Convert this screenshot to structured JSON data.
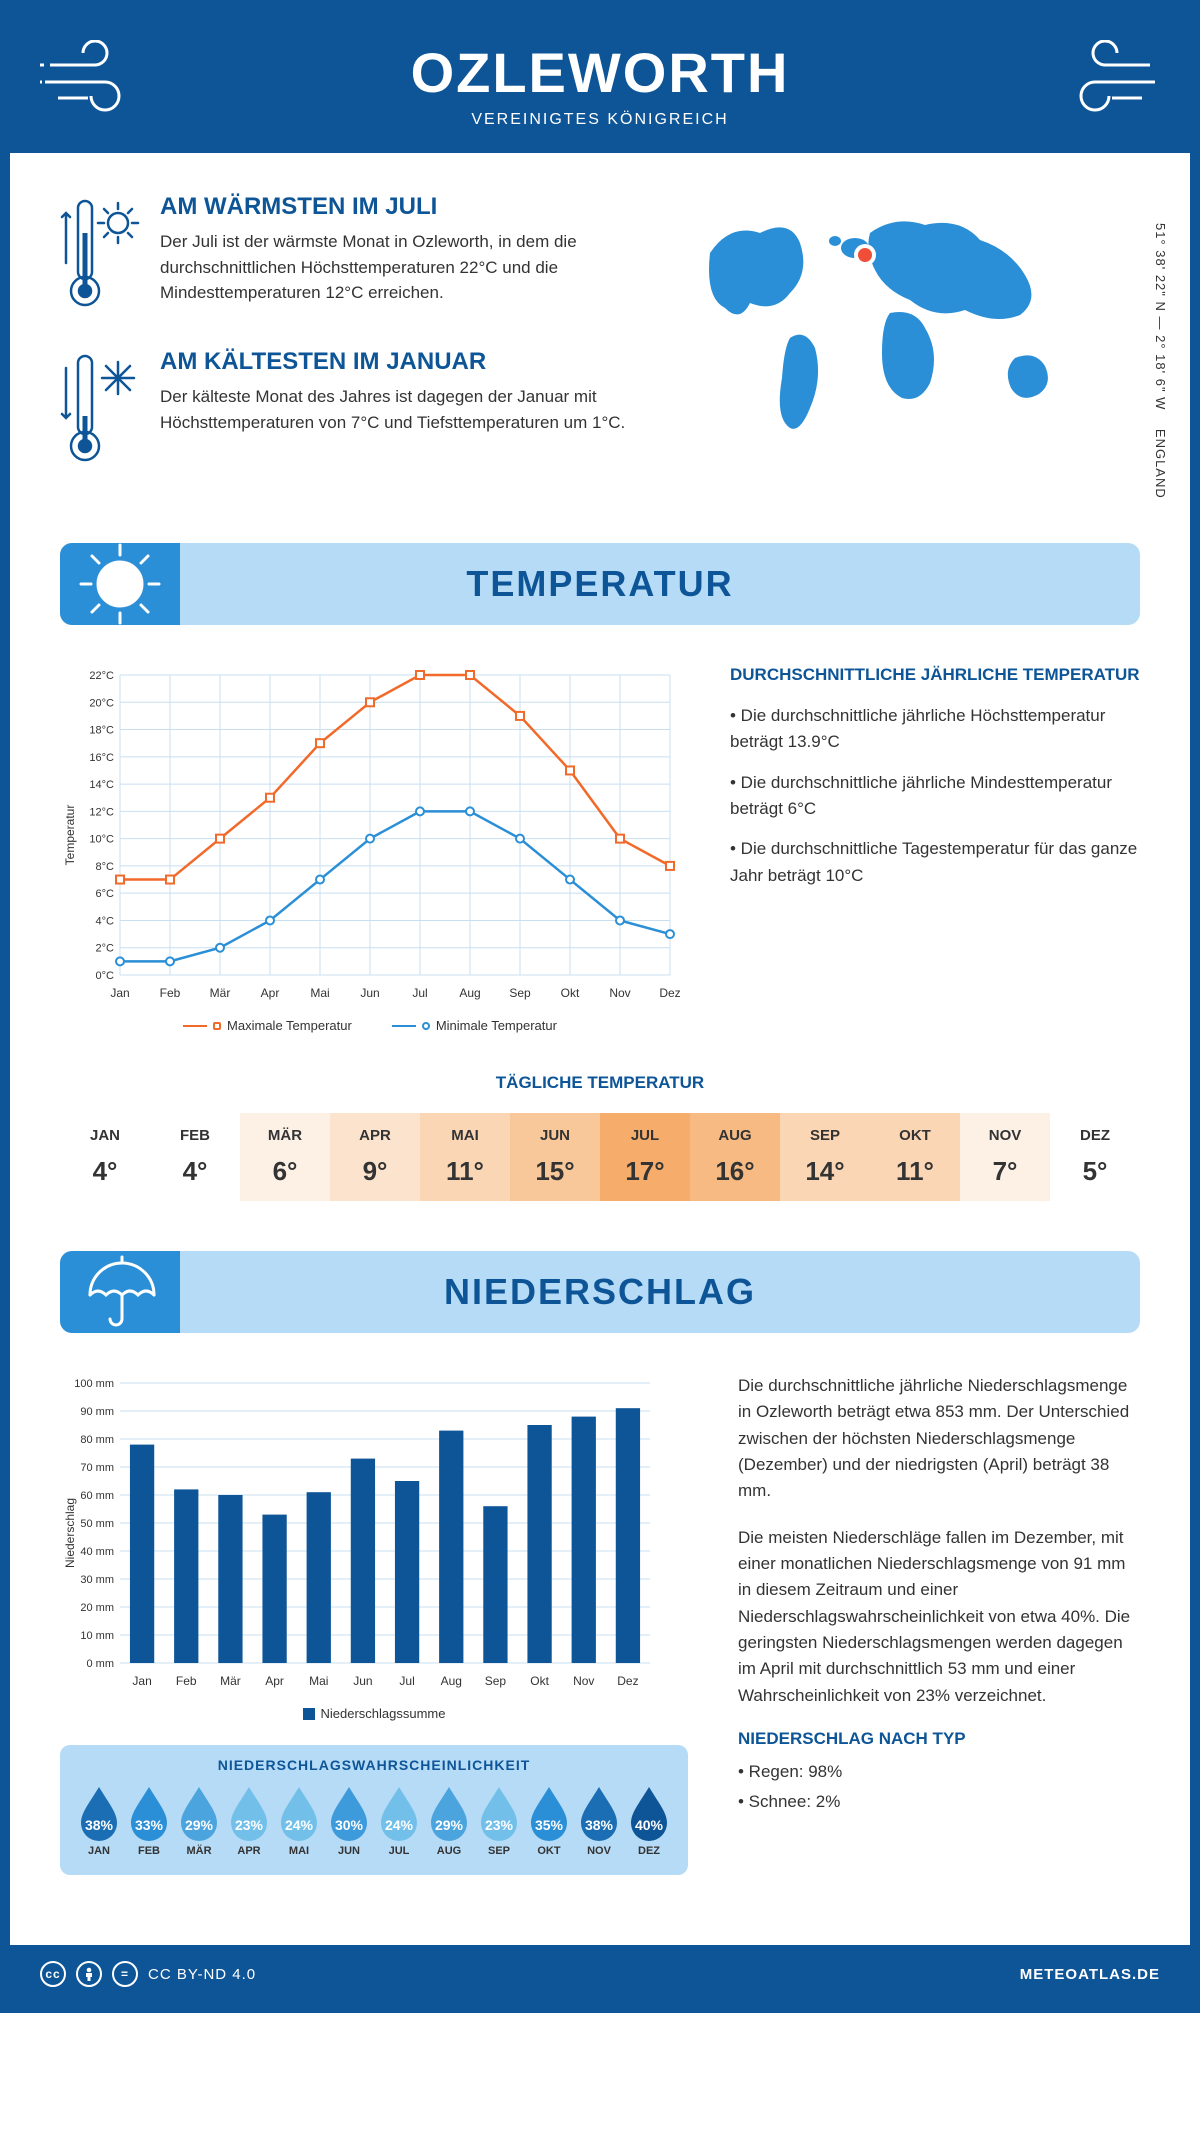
{
  "header": {
    "title": "OZLEWORTH",
    "subtitle": "VEREINIGTES KÖNIGREICH"
  },
  "coords_line1": "51° 38' 22\" N — 2° 18' 6\" W",
  "coords_line2": "ENGLAND",
  "facts": {
    "warm": {
      "title": "AM WÄRMSTEN IM JULI",
      "text": "Der Juli ist der wärmste Monat in Ozleworth, in dem die durchschnittlichen Höchsttemperaturen 22°C und die Mindesttemperaturen 12°C erreichen."
    },
    "cold": {
      "title": "AM KÄLTESTEN IM JANUAR",
      "text": "Der kälteste Monat des Jahres ist dagegen der Januar mit Höchsttemperaturen von 7°C und Tiefsttemperaturen um 1°C."
    }
  },
  "sections": {
    "temperature": "TEMPERATUR",
    "precipitation": "NIEDERSCHLAG"
  },
  "months": [
    "Jan",
    "Feb",
    "Mär",
    "Apr",
    "Mai",
    "Jun",
    "Jul",
    "Aug",
    "Sep",
    "Okt",
    "Nov",
    "Dez"
  ],
  "months_upper": [
    "JAN",
    "FEB",
    "MÄR",
    "APR",
    "MAI",
    "JUN",
    "JUL",
    "AUG",
    "SEP",
    "OKT",
    "NOV",
    "DEZ"
  ],
  "temp_chart": {
    "type": "line",
    "ylabel": "Temperatur",
    "ylim": [
      0,
      22
    ],
    "ytick_step": 2,
    "ytick_suffix": "°C",
    "max_series": [
      7,
      7,
      10,
      13,
      17,
      20,
      22,
      22,
      19,
      15,
      10,
      8
    ],
    "min_series": [
      1,
      1,
      2,
      4,
      7,
      10,
      12,
      12,
      10,
      7,
      4,
      3
    ],
    "max_color": "#f26a2a",
    "min_color": "#2a8fd6",
    "grid_color": "#c9dff0",
    "marker_fill": "#ffffff",
    "legend_max": "Maximale Temperatur",
    "legend_min": "Minimale Temperatur"
  },
  "temp_info": {
    "heading": "DURCHSCHNITTLICHE JÄHRLICHE TEMPERATUR",
    "p1": "• Die durchschnittliche jährliche Höchsttemperatur beträgt 13.9°C",
    "p2": "• Die durchschnittliche jährliche Mindesttemperatur beträgt 6°C",
    "p3": "• Die durchschnittliche Tagestemperatur für das ganze Jahr beträgt 10°C"
  },
  "daily": {
    "title": "TÄGLICHE TEMPERATUR",
    "values": [
      "4°",
      "4°",
      "6°",
      "9°",
      "11°",
      "15°",
      "17°",
      "16°",
      "14°",
      "11°",
      "7°",
      "5°"
    ],
    "bg_colors": [
      "#ffffff",
      "#ffffff",
      "#fdf0e5",
      "#fce3ce",
      "#fbd6b5",
      "#f9c89a",
      "#f6ac6b",
      "#f7ba83",
      "#fbd6b5",
      "#fbd6b5",
      "#fdf0e5",
      "#ffffff"
    ]
  },
  "precip_chart": {
    "type": "bar",
    "ylabel": "Niederschlag",
    "ylim": [
      0,
      100
    ],
    "ytick_step": 10,
    "ytick_suffix": " mm",
    "values": [
      78,
      62,
      60,
      53,
      61,
      73,
      65,
      83,
      56,
      85,
      88,
      91
    ],
    "bar_color": "#0d5597",
    "grid_color": "#c9dff0",
    "legend": "Niederschlagssumme"
  },
  "precip_text": {
    "p1": "Die durchschnittliche jährliche Niederschlagsmenge in Ozleworth beträgt etwa 853 mm. Der Unterschied zwischen der höchsten Niederschlagsmenge (Dezember) und der niedrigsten (April) beträgt 38 mm.",
    "p2": "Die meisten Niederschläge fallen im Dezember, mit einer monatlichen Niederschlagsmenge von 91 mm in diesem Zeitraum und einer Niederschlagswahrscheinlichkeit von etwa 40%. Die geringsten Niederschlagsmengen werden dagegen im April mit durchschnittlich 53 mm und einer Wahrscheinlichkeit von 23% verzeichnet.",
    "type_heading": "NIEDERSCHLAG NACH TYP",
    "type_rain": "• Regen: 98%",
    "type_snow": "• Schnee: 2%"
  },
  "prob": {
    "title": "NIEDERSCHLAGSWAHRSCHEINLICHKEIT",
    "values": [
      "38%",
      "33%",
      "29%",
      "23%",
      "24%",
      "30%",
      "24%",
      "29%",
      "23%",
      "35%",
      "38%",
      "40%"
    ],
    "colors": [
      "#1b6eb3",
      "#2a8fd6",
      "#4ba4de",
      "#72c0ea",
      "#72c0ea",
      "#3d9adb",
      "#72c0ea",
      "#4ba4de",
      "#72c0ea",
      "#2a8fd6",
      "#1b6eb3",
      "#0d5597"
    ]
  },
  "footer": {
    "license": "CC BY-ND 4.0",
    "brand": "METEOATLAS.DE"
  },
  "colors": {
    "primary": "#0d5597",
    "light_blue": "#b6dbf7",
    "mid_blue": "#2a8fd6",
    "marker_red": "#f04e38"
  }
}
